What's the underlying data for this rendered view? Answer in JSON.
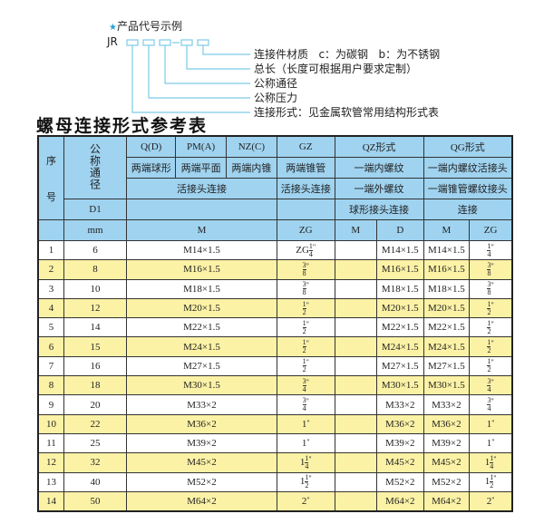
{
  "example": {
    "title": "产品代号示例",
    "code_prefix": "JR",
    "labels": [
      "连接件材质   c：为碳钢   b：为不锈钢",
      "总长（长度可根据用户要求定制）",
      "公称通径",
      "公称压力",
      "连接形式：见金属软管常用结构形式表"
    ],
    "line_color": "#7ccbe6"
  },
  "page_title": "螺母连接形式参考表",
  "table": {
    "h_seq": "序\n\n号",
    "h_seq_a": "序",
    "h_seq_b": "号",
    "h_dn": "公称通径",
    "h_d1": "D1",
    "h_mm": "mm",
    "row1": [
      "Q(D)",
      "PM(A)",
      "NZ(C)",
      "GZ",
      "QZ形式",
      "QG形式"
    ],
    "row2": [
      "两端球形",
      "两端平面",
      "两端内锥",
      "两端锥管",
      "一端内螺纹",
      "一端内螺纹活接头"
    ],
    "row3": [
      "活接头连接",
      "活接头连接",
      "一端外螺纹",
      "一端锥管螺纹接头"
    ],
    "row4": [
      "",
      "",
      "球形接头连接",
      "连接"
    ],
    "row5": [
      "M",
      "ZG",
      "M",
      "D",
      "M",
      "ZG"
    ],
    "colors": {
      "header": "#9fd3f0",
      "alt_row": "#fcf2a6"
    },
    "rows": [
      {
        "no": "1",
        "dn": "6",
        "m": "M14×1.5",
        "zg": {
          "pre": "ZG",
          "whole": "",
          "num": "1",
          "den": "4"
        },
        "qz_m": "",
        "qz_d": "M14×1.5",
        "qg_m": "M14×1.5",
        "qg_zg": {
          "pre": "",
          "whole": "",
          "num": "1",
          "den": "4"
        }
      },
      {
        "no": "2",
        "dn": "8",
        "m": "M16×1.5",
        "zg": {
          "pre": "",
          "whole": "",
          "num": "3",
          "den": "8"
        },
        "qz_m": "",
        "qz_d": "M16×1.5",
        "qg_m": "M16×1.5",
        "qg_zg": {
          "pre": "",
          "whole": "",
          "num": "3",
          "den": "8"
        }
      },
      {
        "no": "3",
        "dn": "10",
        "m": "M18×1.5",
        "zg": {
          "pre": "",
          "whole": "",
          "num": "3",
          "den": "8"
        },
        "qz_m": "",
        "qz_d": "M18×1.5",
        "qg_m": "M18×1.5",
        "qg_zg": {
          "pre": "",
          "whole": "",
          "num": "3",
          "den": "8"
        }
      },
      {
        "no": "4",
        "dn": "12",
        "m": "M20×1.5",
        "zg": {
          "pre": "",
          "whole": "",
          "num": "1",
          "den": "2"
        },
        "qz_m": "",
        "qz_d": "M20×1.5",
        "qg_m": "M20×1.5",
        "qg_zg": {
          "pre": "",
          "whole": "",
          "num": "1",
          "den": "2"
        }
      },
      {
        "no": "5",
        "dn": "14",
        "m": "M22×1.5",
        "zg": {
          "pre": "",
          "whole": "",
          "num": "1",
          "den": "2"
        },
        "qz_m": "",
        "qz_d": "M22×1.5",
        "qg_m": "M22×1.5",
        "qg_zg": {
          "pre": "",
          "whole": "",
          "num": "1",
          "den": "2"
        }
      },
      {
        "no": "6",
        "dn": "15",
        "m": "M24×1.5",
        "zg": {
          "pre": "",
          "whole": "",
          "num": "1",
          "den": "2"
        },
        "qz_m": "",
        "qz_d": "M24×1.5",
        "qg_m": "M24×1.5",
        "qg_zg": {
          "pre": "",
          "whole": "",
          "num": "1",
          "den": "2"
        }
      },
      {
        "no": "7",
        "dn": "16",
        "m": "M27×1.5",
        "zg": {
          "pre": "",
          "whole": "",
          "num": "1",
          "den": "2"
        },
        "qz_m": "",
        "qz_d": "M27×1.5",
        "qg_m": "M27×1.5",
        "qg_zg": {
          "pre": "",
          "whole": "",
          "num": "1",
          "den": "2"
        }
      },
      {
        "no": "8",
        "dn": "18",
        "m": "M30×1.5",
        "zg": {
          "pre": "",
          "whole": "",
          "num": "3",
          "den": "4"
        },
        "qz_m": "",
        "qz_d": "M30×1.5",
        "qg_m": "M30×1.5",
        "qg_zg": {
          "pre": "",
          "whole": "",
          "num": "3",
          "den": "4"
        }
      },
      {
        "no": "9",
        "dn": "20",
        "m": "M33×2",
        "zg": {
          "pre": "",
          "whole": "",
          "num": "3",
          "den": "4"
        },
        "qz_m": "",
        "qz_d": "M33×2",
        "qg_m": "M33×2",
        "qg_zg": {
          "pre": "",
          "whole": "",
          "num": "3",
          "den": "4"
        }
      },
      {
        "no": "10",
        "dn": "22",
        "m": "M36×2",
        "zg": {
          "pre": "",
          "whole": "1",
          "num": "",
          "den": ""
        },
        "qz_m": "",
        "qz_d": "M36×2",
        "qg_m": "M36×2",
        "qg_zg": {
          "pre": "",
          "whole": "1",
          "num": "",
          "den": ""
        }
      },
      {
        "no": "11",
        "dn": "25",
        "m": "M39×2",
        "zg": {
          "pre": "",
          "whole": "1",
          "num": "",
          "den": ""
        },
        "qz_m": "",
        "qz_d": "M39×2",
        "qg_m": "M39×2",
        "qg_zg": {
          "pre": "",
          "whole": "1",
          "num": "",
          "den": ""
        }
      },
      {
        "no": "12",
        "dn": "32",
        "m": "M45×2",
        "zg": {
          "pre": "",
          "whole": "1",
          "num": "1",
          "den": "4"
        },
        "qz_m": "",
        "qz_d": "M45×2",
        "qg_m": "M45×2",
        "qg_zg": {
          "pre": "",
          "whole": "1",
          "num": "1",
          "den": "4"
        }
      },
      {
        "no": "13",
        "dn": "40",
        "m": "M52×2",
        "zg": {
          "pre": "",
          "whole": "1",
          "num": "1",
          "den": "2"
        },
        "qz_m": "",
        "qz_d": "M52×2",
        "qg_m": "M52×2",
        "qg_zg": {
          "pre": "",
          "whole": "1",
          "num": "1",
          "den": "2"
        }
      },
      {
        "no": "14",
        "dn": "50",
        "m": "M64×2",
        "zg": {
          "pre": "",
          "whole": "2",
          "num": "",
          "den": ""
        },
        "qz_m": "",
        "qz_d": "M64×2",
        "qg_m": "M64×2",
        "qg_zg": {
          "pre": "",
          "whole": "2",
          "num": "",
          "den": ""
        }
      }
    ],
    "inch_mark": "\""
  }
}
